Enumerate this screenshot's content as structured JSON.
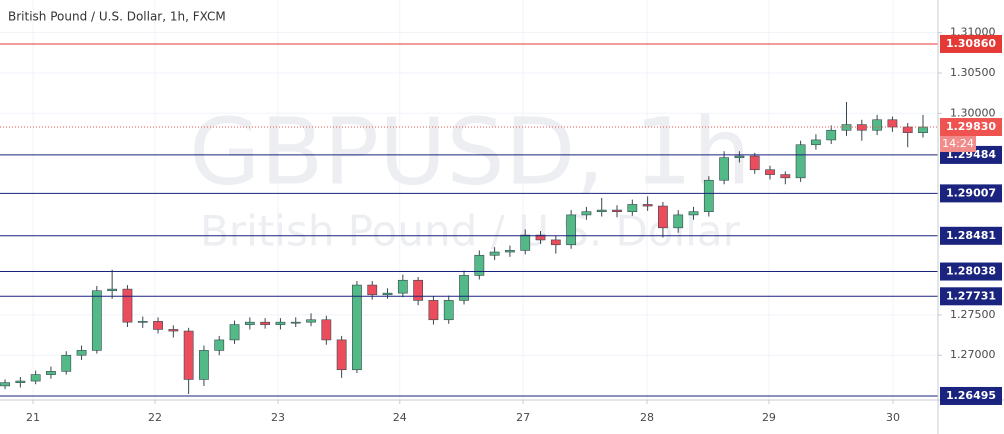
{
  "chart_data": {
    "type": "candlestick",
    "title": "British Pound / U.S. Dollar, 1h, FXCM",
    "watermark": {
      "symbol": "GBPUSD, 1h",
      "description": "British Pound / U.S. Dollar"
    },
    "up_color": "#53b987",
    "down_color": "#eb4d5c",
    "open": [
      1.2662,
      1.2666,
      1.2668,
      1.2676,
      1.268,
      1.27,
      1.2706,
      1.278,
      1.2782,
      1.2741,
      1.2742,
      1.2732,
      1.273,
      1.267,
      1.2706,
      1.2719,
      1.2738,
      1.2741,
      1.2738,
      1.2741,
      1.2741,
      1.2744,
      1.2719,
      1.2682,
      1.2787,
      1.2775,
      1.2777,
      1.2793,
      1.2768,
      1.2744,
      1.2768,
      1.2799,
      1.2824,
      1.2828,
      1.283,
      1.2849,
      1.2843,
      1.2837,
      1.2874,
      1.2878,
      1.288,
      1.2878,
      1.2887,
      1.2885,
      1.2858,
      1.2874,
      1.2878,
      1.2917,
      1.2945,
      1.2947,
      1.293,
      1.2924,
      1.292,
      1.2961,
      1.2967,
      1.2979,
      1.2986,
      1.2979,
      1.2992,
      1.2983,
      1.2976
    ],
    "high": [
      1.267,
      1.2673,
      1.2681,
      1.2686,
      1.2705,
      1.2712,
      1.2786,
      1.2806,
      1.2787,
      1.2748,
      1.2747,
      1.2737,
      1.2734,
      1.2712,
      1.2724,
      1.2743,
      1.2747,
      1.2746,
      1.2746,
      1.2747,
      1.2752,
      1.2749,
      1.2724,
      1.2792,
      1.2792,
      1.2783,
      1.28,
      1.2797,
      1.2773,
      1.2774,
      1.2805,
      1.283,
      1.2834,
      1.2836,
      1.2856,
      1.2854,
      1.2848,
      1.288,
      1.2884,
      1.2895,
      1.2886,
      1.2893,
      1.2897,
      1.289,
      1.288,
      1.2884,
      1.2922,
      1.2953,
      1.2953,
      1.2951,
      1.2935,
      1.2928,
      1.2966,
      1.2974,
      1.2985,
      1.3014,
      1.2992,
      1.2998,
      1.2996,
      1.2988,
      1.2998
    ],
    "low": [
      1.2658,
      1.266,
      1.2664,
      1.2671,
      1.2676,
      1.2694,
      1.2702,
      1.277,
      1.2735,
      1.2734,
      1.2727,
      1.2722,
      1.2652,
      1.2662,
      1.27,
      1.2714,
      1.2732,
      1.2733,
      1.2732,
      1.2735,
      1.2736,
      1.2713,
      1.2672,
      1.2678,
      1.2769,
      1.277,
      1.2772,
      1.2762,
      1.2738,
      1.2739,
      1.2763,
      1.2794,
      1.2818,
      1.2822,
      1.2825,
      1.2838,
      1.2826,
      1.2832,
      1.2868,
      1.2872,
      1.2871,
      1.2873,
      1.2879,
      1.2846,
      1.2852,
      1.2868,
      1.2872,
      1.2912,
      1.2939,
      1.2925,
      1.2918,
      1.2912,
      1.2915,
      1.2955,
      1.2962,
      1.2972,
      1.2966,
      1.2973,
      1.2977,
      1.2958,
      1.297
    ],
    "close": [
      1.2666,
      1.2668,
      1.2676,
      1.268,
      1.27,
      1.2706,
      1.278,
      1.2782,
      1.2741,
      1.2742,
      1.2732,
      1.273,
      1.267,
      1.2706,
      1.2719,
      1.2738,
      1.2741,
      1.2738,
      1.2741,
      1.2741,
      1.2744,
      1.2719,
      1.2682,
      1.2787,
      1.2775,
      1.2777,
      1.2793,
      1.2768,
      1.2744,
      1.2768,
      1.2799,
      1.2824,
      1.2828,
      1.283,
      1.2849,
      1.2843,
      1.2837,
      1.2874,
      1.2878,
      1.288,
      1.2878,
      1.2887,
      1.2885,
      1.2858,
      1.2874,
      1.2878,
      1.2917,
      1.2945,
      1.2947,
      1.293,
      1.2924,
      1.292,
      1.2961,
      1.2967,
      1.2979,
      1.2986,
      1.2979,
      1.2992,
      1.2983,
      1.2976,
      1.2983
    ],
    "xlim": [
      -0.33,
      60.98
    ],
    "xticks": [
      {
        "value": 1.83,
        "label": "21"
      },
      {
        "value": 9.8,
        "label": "22"
      },
      {
        "value": 17.84,
        "label": "23"
      },
      {
        "value": 25.8,
        "label": "24"
      },
      {
        "value": 33.86,
        "label": "27"
      },
      {
        "value": 41.96,
        "label": "28"
      },
      {
        "value": 49.93,
        "label": "29"
      },
      {
        "value": 58.04,
        "label": "30"
      }
    ],
    "ylim": [
      1.26445,
      1.31405
    ],
    "yticks": [
      {
        "value": 1.31,
        "label": "1.31000"
      },
      {
        "value": 1.305,
        "label": "1.30500"
      },
      {
        "value": 1.3,
        "label": "1.30000"
      },
      {
        "value": 1.275,
        "label": "1.27500"
      },
      {
        "value": 1.27,
        "label": "1.27000"
      }
    ],
    "grid": true,
    "levels": [
      {
        "value": 1.3086,
        "label": "1.30860",
        "color": "#e53935"
      },
      {
        "value": 1.29484,
        "label": "1.29484",
        "color": "#1a237e"
      },
      {
        "value": 1.29007,
        "label": "1.29007",
        "color": "#1a237e"
      },
      {
        "value": 1.28481,
        "label": "1.28481",
        "color": "#1a237e"
      },
      {
        "value": 1.28038,
        "label": "1.28038",
        "color": "#1a237e"
      },
      {
        "value": 1.27731,
        "label": "1.27731",
        "color": "#1a237e"
      },
      {
        "value": 1.26495,
        "label": "1.26495",
        "color": "#1a237e"
      }
    ],
    "last_price": {
      "value": 1.2983,
      "label": "1.29830",
      "color": "#ef5350"
    },
    "countdown": "14:24"
  }
}
